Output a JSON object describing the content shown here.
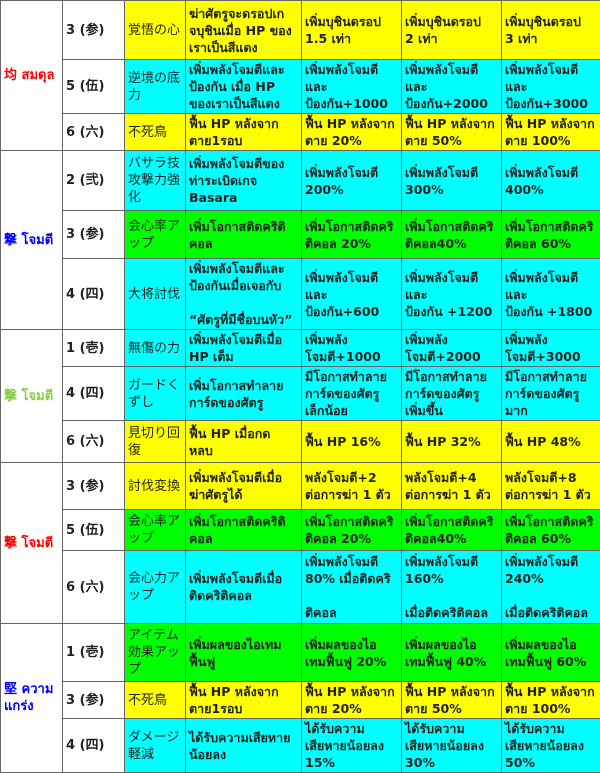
{
  "colors": {
    "yellow": "#ffff00",
    "cyan": "#00ffff",
    "green": "#00ff00",
    "red": "#ff0000",
    "blue": "#0000ff",
    "lightgreen": "#88cc44"
  },
  "groups": [
    {
      "label": "均 สมดุล",
      "color": "#ff0000",
      "rows": [
        {
          "level": "3 (参)",
          "skill": "覚悟の心",
          "bg": "#ffff00",
          "effects": [
            "ฆ่าศัตรูจะดรอปเกจบุชินเมื่อ HP ของเราเป็นสีแดง",
            "เพิ่มบุชินดรอป\n1.5 เท่า",
            "เพิ่มบุชินดรอป\n2 เท่า",
            "เพิ่มบุชินดรอป\n3 เท่า"
          ]
        },
        {
          "level": "5 (伍)",
          "skill": "逆境の底力",
          "bg": "#00ffff",
          "effects": [
            "เพิ่มพลังโจมตีและป้องกัน เมื่อ HP ของเราเป็นสีแดง",
            "เพิ่มพลังโจมตี\nและ\nป้องกัน+1000",
            "เพิ่มพลังโจมตี\nและ\nป้องกัน+2000",
            "เพิ่มพลังโจมตี\nและ\nป้องกัน+3000"
          ]
        },
        {
          "level": "6 (六)",
          "skill": "不死鳥",
          "bg": "#ffff00",
          "effects": [
            "ฟื้น HP หลังจาก\nตาย1รอบ",
            "ฟื้น HP หลังจาก\nตาย 20%",
            "ฟื้น HP หลังจาก\nตาย 50%",
            "ฟื้น HP หลังจาก\nตาย 100%"
          ]
        }
      ]
    },
    {
      "label": "撃 โจมตี",
      "color": "#0000ff",
      "rows": [
        {
          "level": "2 (弐)",
          "skill": "バサラ技攻撃力強化",
          "bg": "#00ffff",
          "effects": [
            "เพิ่มพลังโจมตีของท่าระเบิดเกจ\nBasara",
            "เพิ่มพลังโจมตี\n200%",
            "เพิ่มพลังโจมตี\n300%",
            "เพิ่มพลังโจมตี\n400%"
          ]
        },
        {
          "level": "3 (参)",
          "skill": "会心率アップ",
          "bg": "#00ff00",
          "effects": [
            "เพิ่มโอกาสติดคริติคอล",
            "เพิ่มโอกาสติดคริติคอล 20%",
            "เพิ่มโอกาสติดคริติคอล40%",
            "เพิ่มโอกาสติดคริติคอล 60%"
          ]
        },
        {
          "level": "4 (四)",
          "skill": "大将討伐",
          "bg": "#00ffff",
          "effects": [
            "เพิ่มพลังโจมตีและป้องกันเมื่อเจอกับ\n\n“ศัตรูที่มีชื่อบนหัว”",
            "เพิ่มพลังโจมตี\nและ\nป้องกัน+600",
            "เพิ่มพลังโจมตี\nและ\nป้องกัน +1200",
            "เพิ่มพลังโจมตี\nและ\nป้องกัน +1800"
          ]
        }
      ]
    },
    {
      "label": "撃 โจมตี",
      "color": "#88cc44",
      "rows": [
        {
          "level": "1 (壱)",
          "skill": "無傷の力",
          "bg": "#00ffff",
          "effects": [
            "เพิ่มพลังโจมตีเมื่อ\nHP เต็ม",
            "เพิ่มพลัง\nโจมตี+1000",
            "เพิ่มพลัง\nโจมตี+2000",
            "เพิ่มพลัง\nโจมตี+3000"
          ]
        },
        {
          "level": "4 (四)",
          "skill": "ガードくずし",
          "bg": "#00ffff",
          "effects": [
            "เพิ่มโอกาสทำลายการ์ดของศัตรู",
            "มีโอกาสทำลาย\nการ์ดของศัตรู\nเล็กน้อย",
            "มีโอกาสทำลาย\nการ์ดของศัตรู\nเพิ่มขึ้น",
            "มีโอกาสทำลาย\nการ์ดของศัตรู\nมาก"
          ]
        },
        {
          "level": "6 (六)",
          "skill": "見切り回復",
          "bg": "#ffff00",
          "effects": [
            "ฟื้น HP เมื่อกด\nหลบ",
            "ฟื้น HP  16%",
            "ฟื้น HP 32%",
            "ฟื้น HP 48%"
          ]
        }
      ]
    },
    {
      "label": "撃 โจมตี",
      "color": "#ff0000",
      "rows": [
        {
          "level": "3 (参)",
          "skill": "討伐変換",
          "bg": "#ffff00",
          "effects": [
            "เพิ่มพลังโจมตีเมื่อฆ่าศัตรูได้",
            "พลังโจมตี+2\nต่อการฆ่า 1 ตัว",
            "พลังโจมตี+4\nต่อการฆ่า 1 ตัว",
            "พลังโจมตี+8\nต่อการฆ่า 1 ตัว"
          ]
        },
        {
          "level": "5 (伍)",
          "skill": "会心率アップ",
          "bg": "#00ff00",
          "effects": [
            "เพิ่มโอกาสติดคริติคอล",
            "เพิ่มโอกาสติดคริติคอล 20%",
            "เพิ่มโอกาสติดคริติคอล40%",
            "เพิ่มโอกาสติดคริติคอล 60%"
          ]
        },
        {
          "level": "6 (六)",
          "skill": "会心力アップ",
          "bg": "#00ffff",
          "effects": [
            "เพิ่มพลังโจมตีเมื่อติดคริติคอล",
            "เพิ่มพลังโจมตี\n80% เมื่อติดคริ\n\nติคอล",
            "เพิ่มพลังโจมตี\n160%\n\nเมื่อติดคริติคอล",
            "เพิ่มพลังโจมตี\n240%\n\nเมื่อติดคริติคอล"
          ]
        }
      ]
    },
    {
      "label": "堅 ความแกร่ง",
      "color": "#0000ff",
      "rows": [
        {
          "level": "1 (壱)",
          "skill": "アイテム効果アップ",
          "bg": "#00ff00",
          "effects": [
            "เพิ่มผลของไอเทมฟื้นฟู",
            "เพิ่มผลของไอ\nเทมฟื้นฟู 20%",
            "เพิ่มผลของไอ\nเทมฟื้นฟู 40%",
            "เพิ่มผลของไอ\nเทมฟื้นฟู 60%"
          ]
        },
        {
          "level": "3 (参)",
          "skill": "不死鳥",
          "bg": "#ffff00",
          "effects": [
            "ฟื้น HP หลังจาก\nตาย1รอบ",
            "ฟื้น HP หลังจาก\nตาย 20%",
            "ฟื้น HP หลังจาก\nตาย 50%",
            "ฟื้น HP หลังจาก\nตาย 100%"
          ]
        },
        {
          "level": "4 (四)",
          "skill": "ダメージ軽減",
          "bg": "#00ffff",
          "effects": [
            "ได้รับความเสียหายน้อยลง",
            "ได้รับความ\nเสียหายน้อยลง\n15%",
            "ได้รับความ\nเสียหายน้อยลง\n30%",
            "ได้รับความ\nเสียหายน้อยลง\n50%"
          ]
        }
      ]
    }
  ]
}
